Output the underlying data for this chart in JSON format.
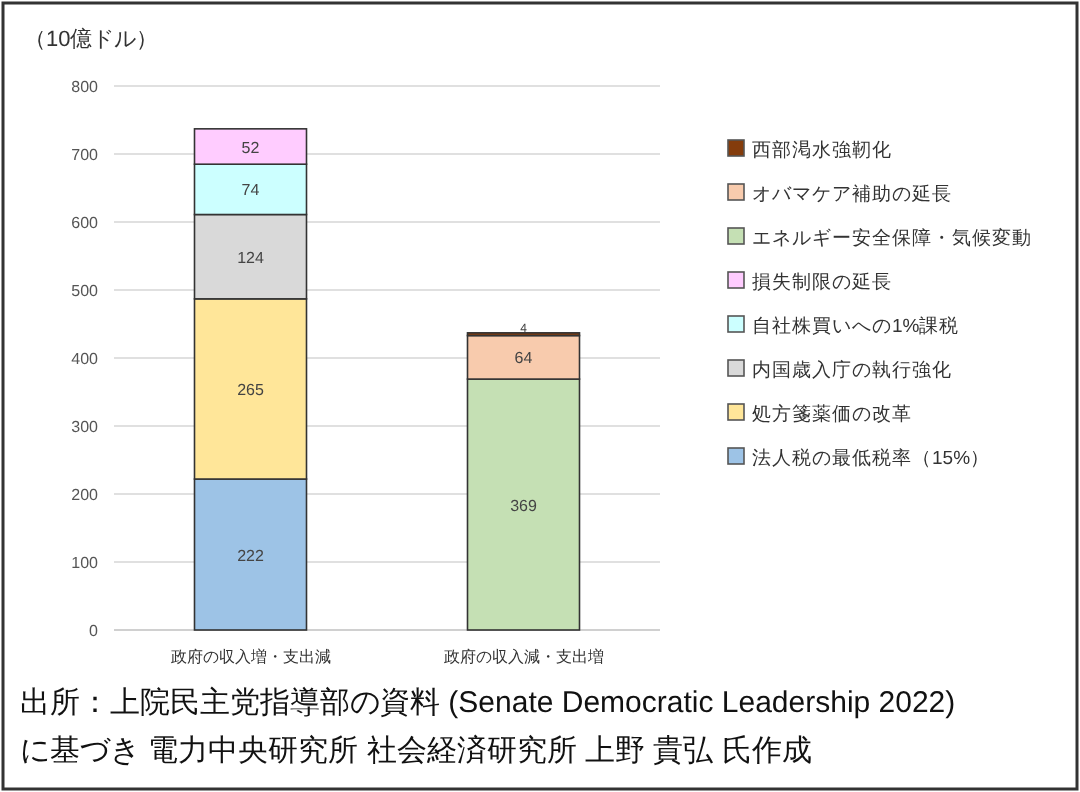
{
  "chart_data": {
    "type": "bar",
    "stacked": true,
    "ylabel": "（10億ドル）",
    "categories": [
      "政府の収入増・支出減",
      "政府の収入減・支出増"
    ],
    "series": [
      {
        "name": "法人税の最低税率（15%）",
        "color": "#9dc3e6",
        "values": [
          222,
          null
        ],
        "value_labels": [
          "222",
          null
        ]
      },
      {
        "name": "処方箋薬価の改革",
        "color": "#ffe699",
        "values": [
          265,
          null
        ],
        "value_labels": [
          "265",
          null
        ]
      },
      {
        "name": "内国歳入庁の執行強化",
        "color": "#d9d9d9",
        "values": [
          124,
          null
        ],
        "value_labels": [
          "124",
          null
        ]
      },
      {
        "name": "自社株買いへの1%課税",
        "color": "#ccffff",
        "values": [
          74,
          null
        ],
        "value_labels": [
          "74",
          null
        ]
      },
      {
        "name": "損失制限の延長",
        "color": "#ffccff",
        "values": [
          52,
          null
        ],
        "value_labels": [
          "52",
          null
        ]
      },
      {
        "name": "エネルギー安全保障・気候変動",
        "color": "#c5e0b4",
        "values": [
          null,
          369
        ],
        "value_labels": [
          null,
          "369"
        ]
      },
      {
        "name": "オバマケア補助の延長",
        "color": "#f8cbad",
        "values": [
          null,
          64
        ],
        "value_labels": [
          null,
          "64"
        ]
      },
      {
        "name": "西部渇水強靭化",
        "color": "#843c0c",
        "values": [
          null,
          4
        ],
        "value_labels": [
          null,
          "4"
        ]
      }
    ],
    "ylim": [
      0,
      800
    ],
    "yticks": [
      0,
      100,
      200,
      300,
      400,
      500,
      600,
      700,
      800
    ],
    "grid": "y",
    "legend": "right",
    "annotations": [
      "出所：上院民主党指導部の資料 (Senate Democratic Leadership 2022) に基づき 電力中央研究所 社会経済研究所 上野 貴弘 氏作成"
    ]
  }
}
